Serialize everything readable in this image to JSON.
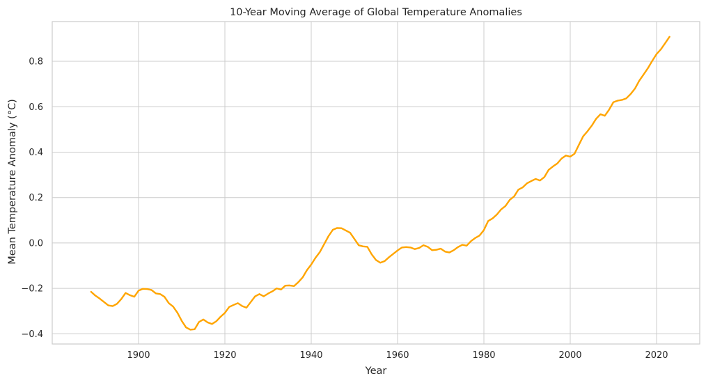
{
  "chart_data": {
    "type": "line",
    "title": "10-Year Moving Average of Global Temperature Anomalies",
    "xlabel": "Year",
    "ylabel": "Mean Temperature Anomaly (°C)",
    "xlim": [
      1880,
      2030
    ],
    "ylim": [
      -0.445,
      0.975
    ],
    "xticks": [
      1900,
      1920,
      1940,
      1960,
      1980,
      2000,
      2020
    ],
    "yticks": [
      -0.4,
      -0.2,
      0.0,
      0.2,
      0.4,
      0.6,
      0.8
    ],
    "ytick_labels": [
      "−0.4",
      "−0.2",
      "0.0",
      "0.2",
      "0.4",
      "0.6",
      "0.8"
    ],
    "grid": true,
    "series": [
      {
        "color": "#FFA500",
        "x": [
          1889,
          1890,
          1891,
          1892,
          1893,
          1894,
          1895,
          1896,
          1897,
          1898,
          1899,
          1900,
          1901,
          1902,
          1903,
          1904,
          1905,
          1906,
          1907,
          1908,
          1909,
          1910,
          1911,
          1912,
          1913,
          1914,
          1915,
          1916,
          1917,
          1918,
          1919,
          1920,
          1921,
          1922,
          1923,
          1924,
          1925,
          1926,
          1927,
          1928,
          1929,
          1930,
          1931,
          1932,
          1933,
          1934,
          1935,
          1936,
          1937,
          1938,
          1939,
          1940,
          1941,
          1942,
          1943,
          1944,
          1945,
          1946,
          1947,
          1948,
          1949,
          1950,
          1951,
          1952,
          1953,
          1954,
          1955,
          1956,
          1957,
          1958,
          1959,
          1960,
          1961,
          1962,
          1963,
          1964,
          1965,
          1966,
          1967,
          1968,
          1969,
          1970,
          1971,
          1972,
          1973,
          1974,
          1975,
          1976,
          1977,
          1978,
          1979,
          1980,
          1981,
          1982,
          1983,
          1984,
          1985,
          1986,
          1987,
          1988,
          1989,
          1990,
          1991,
          1992,
          1993,
          1994,
          1995,
          1996,
          1997,
          1998,
          1999,
          2000,
          2001,
          2002,
          2003,
          2004,
          2005,
          2006,
          2007,
          2008,
          2009,
          2010,
          2011,
          2012,
          2013,
          2014,
          2015,
          2016,
          2017,
          2018,
          2019,
          2020,
          2021,
          2022,
          2023
        ],
        "values": [
          -0.215,
          -0.232,
          -0.245,
          -0.26,
          -0.275,
          -0.278,
          -0.268,
          -0.247,
          -0.22,
          -0.23,
          -0.237,
          -0.21,
          -0.202,
          -0.203,
          -0.207,
          -0.222,
          -0.225,
          -0.237,
          -0.265,
          -0.28,
          -0.307,
          -0.343,
          -0.372,
          -0.382,
          -0.38,
          -0.348,
          -0.337,
          -0.35,
          -0.357,
          -0.345,
          -0.325,
          -0.308,
          -0.282,
          -0.273,
          -0.265,
          -0.278,
          -0.285,
          -0.26,
          -0.235,
          -0.225,
          -0.235,
          -0.223,
          -0.213,
          -0.2,
          -0.205,
          -0.188,
          -0.187,
          -0.19,
          -0.173,
          -0.152,
          -0.12,
          -0.095,
          -0.065,
          -0.04,
          -0.005,
          0.03,
          0.058,
          0.066,
          0.065,
          0.055,
          0.045,
          0.018,
          -0.01,
          -0.015,
          -0.017,
          -0.05,
          -0.075,
          -0.087,
          -0.08,
          -0.063,
          -0.048,
          -0.033,
          -0.02,
          -0.018,
          -0.02,
          -0.027,
          -0.022,
          -0.01,
          -0.017,
          -0.032,
          -0.03,
          -0.025,
          -0.038,
          -0.042,
          -0.032,
          -0.018,
          -0.008,
          -0.012,
          0.008,
          0.022,
          0.033,
          0.057,
          0.097,
          0.108,
          0.125,
          0.148,
          0.163,
          0.19,
          0.205,
          0.235,
          0.245,
          0.263,
          0.273,
          0.282,
          0.275,
          0.29,
          0.322,
          0.337,
          0.35,
          0.372,
          0.385,
          0.38,
          0.393,
          0.432,
          0.47,
          0.492,
          0.517,
          0.547,
          0.567,
          0.56,
          0.587,
          0.62,
          0.627,
          0.63,
          0.637,
          0.656,
          0.68,
          0.715,
          0.742,
          0.77,
          0.802,
          0.832,
          0.853,
          0.88,
          0.908
        ]
      }
    ]
  }
}
